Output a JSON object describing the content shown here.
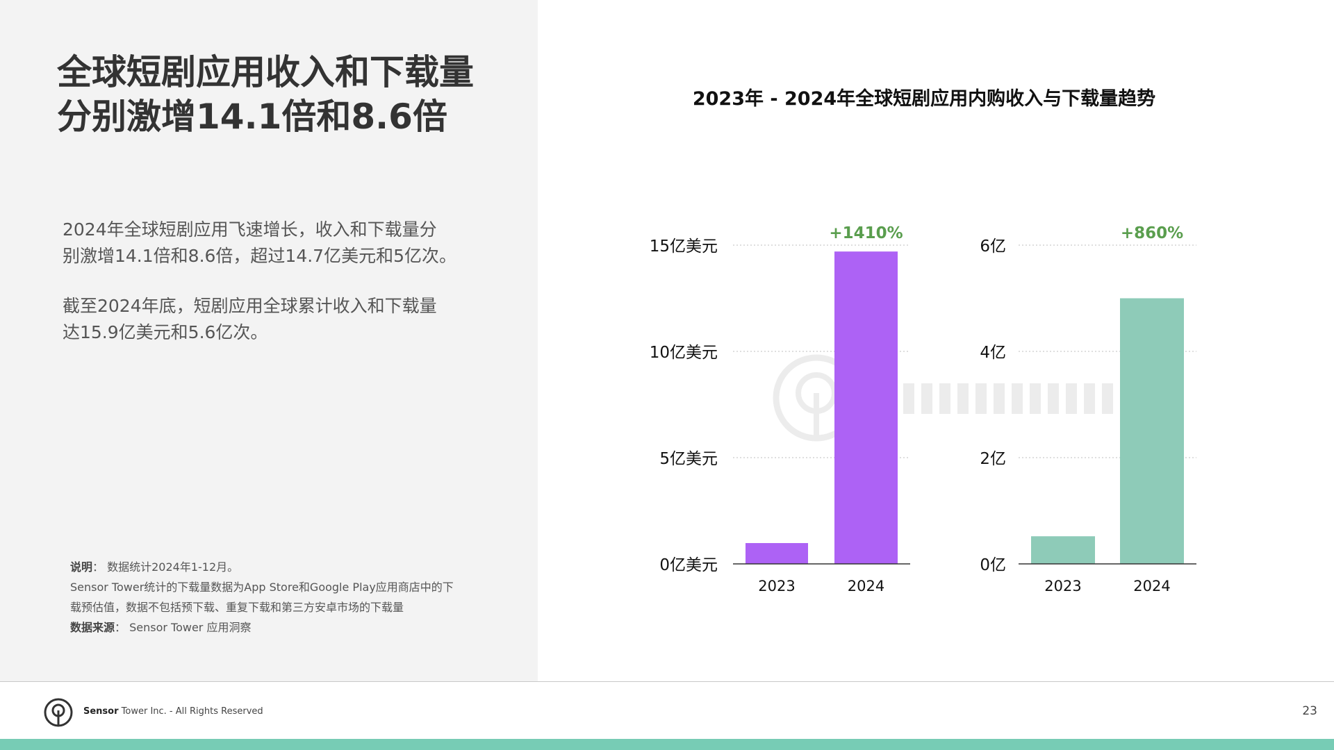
{
  "title": {
    "line1": "全球短剧应用收入和下载量",
    "line2": "分别激增14.1倍和8.6倍"
  },
  "paragraphs": [
    {
      "line1": "2024年全球短剧应用飞速增长，收入和下载量分",
      "line2": "别激增14.1倍和8.6倍，超过14.7亿美元和5亿次。"
    },
    {
      "line1": "截至2024年底，短剧应用全球累计收入和下载量",
      "line2": "达15.9亿美元和5.6亿次。"
    }
  ],
  "notes": {
    "note_label": "说明",
    "note_text": "：  数据统计2024年1-12月。",
    "line2": "Sensor Tower统计的下载量数据为App Store和Google Play应用商店中的下",
    "line3": "载预估值，数据不包括预下载、重复下载和第三方安卓市场的下载量",
    "source_label": "数据来源",
    "source_text": "：  Sensor Tower 应用洞察"
  },
  "footer": {
    "brand": "Sensor",
    "text": " Tower Inc. - All Rights Reserved",
    "page_number": "23"
  },
  "colors": {
    "revenue": "#ad62f5",
    "downloads": "#8ecbb8",
    "growth": "#5a9e4e",
    "bottom_bar": "#77ccb5"
  },
  "chart_data": [
    {
      "type": "bar",
      "title": "2023年 - 2024年全球短剧应用内购收入与下载量趋势",
      "categories": [
        "2023",
        "2024"
      ],
      "values": [
        0.98,
        14.7
      ],
      "ylim": [
        0,
        15
      ],
      "yticks": [
        0,
        5,
        10,
        15
      ],
      "ytick_labels": [
        "0亿美元",
        "5亿美元",
        "10亿美元",
        "15亿美元"
      ],
      "annotation": "+1410%",
      "grid": true
    },
    {
      "type": "bar",
      "categories": [
        "2023",
        "2024"
      ],
      "values": [
        0.52,
        5.0
      ],
      "ylim": [
        0,
        6
      ],
      "yticks": [
        0,
        2,
        4,
        6
      ],
      "ytick_labels": [
        "0亿",
        "2亿",
        "4亿",
        "6亿"
      ],
      "annotation": "+860%",
      "grid": true
    }
  ]
}
